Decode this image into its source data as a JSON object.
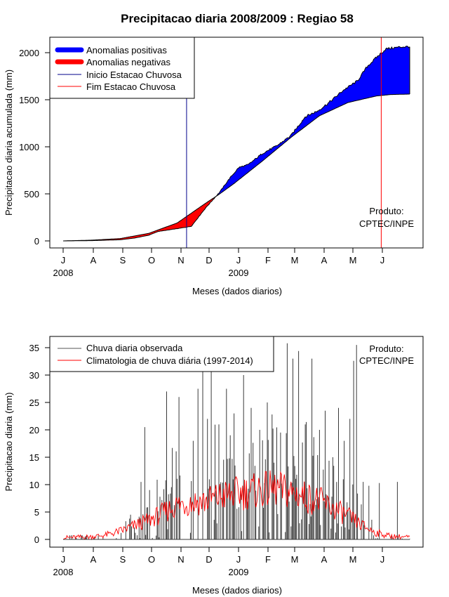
{
  "chart_data": [
    {
      "type": "area",
      "title": "Precipitacao diaria 2008/2009 : Regiao 58",
      "xlabel": "Meses (dados diarios)",
      "ylabel": "Precipitacao diaria acumulada (mm)",
      "ylim": [
        0,
        2100
      ],
      "yticks": [
        0,
        500,
        1000,
        1500,
        2000
      ],
      "month_ticks": [
        "J",
        "A",
        "S",
        "O",
        "N",
        "D",
        "J",
        "F",
        "M",
        "A",
        "M",
        "J"
      ],
      "year_labels": [
        {
          "label": "2008",
          "month_index": 0
        },
        {
          "label": "2009",
          "month_index": 6
        }
      ],
      "legend": {
        "position": "top-left",
        "entries": [
          {
            "label": "Anomalias positivas",
            "color": "#0000ff",
            "style": "thick"
          },
          {
            "label": "Anomalias negativas",
            "color": "#ff0000",
            "style": "thick"
          },
          {
            "label": "Inicio Estacao Chuvosa",
            "color": "#00008b",
            "style": "thin"
          },
          {
            "label": "Fim Estacao Chuvosa",
            "color": "#ff0000",
            "style": "thin"
          }
        ]
      },
      "annotation": [
        "Produto:",
        "CPTEC/INPE"
      ],
      "day_axis": {
        "start_day": 0,
        "end_day": 365
      },
      "season_start_day": 130,
      "season_end_day": 335,
      "climatology_cumulative": {
        "days": [
          0,
          30,
          60,
          90,
          120,
          150,
          165,
          180,
          210,
          240,
          270,
          300,
          330,
          345,
          365
        ],
        "values": [
          0,
          8,
          25,
          80,
          190,
          400,
          500,
          610,
          850,
          1100,
          1330,
          1470,
          1540,
          1555,
          1560
        ]
      },
      "observed_cumulative": {
        "days": [
          0,
          30,
          60,
          75,
          90,
          100,
          120,
          135,
          150,
          165,
          175,
          185,
          195,
          210,
          225,
          240,
          255,
          268,
          280,
          295,
          310,
          320,
          330,
          340,
          355,
          365
        ],
        "values": [
          0,
          3,
          12,
          30,
          60,
          100,
          130,
          155,
          350,
          520,
          660,
          780,
          810,
          930,
          1010,
          1120,
          1320,
          1380,
          1470,
          1600,
          1700,
          1850,
          1950,
          2040,
          2060,
          2065
        ]
      },
      "positive_anomaly_color": "#0000ff",
      "negative_anomaly_color": "#ff0000"
    },
    {
      "type": "bar",
      "xlabel": "Meses (dados diarios)",
      "ylabel": "Precipitacao diaria (mm)",
      "ylim": [
        0,
        37
      ],
      "yticks": [
        0,
        5,
        10,
        15,
        20,
        25,
        30,
        35
      ],
      "month_ticks": [
        "J",
        "A",
        "S",
        "O",
        "N",
        "D",
        "J",
        "F",
        "M",
        "A",
        "M",
        "J"
      ],
      "year_labels": [
        {
          "label": "2008",
          "month_index": 0
        },
        {
          "label": "2009",
          "month_index": 6
        }
      ],
      "legend": {
        "position": "top-left",
        "entries": [
          {
            "label": "Chuva diaria observada",
            "color": "#555555",
            "style": "thin"
          },
          {
            "label": "Climatologia de chuva diária (1997-2014)",
            "color": "#ff0000",
            "style": "thin"
          }
        ]
      },
      "annotation": [
        "Produto:",
        "CPTEC/INPE"
      ],
      "day_axis": {
        "start_day": 0,
        "end_day": 365
      },
      "observed_peaks": [
        {
          "day": 86,
          "value": 20.5
        },
        {
          "day": 82,
          "value": 10.5
        },
        {
          "day": 104,
          "value": 7.2
        },
        {
          "day": 109,
          "value": 27
        },
        {
          "day": 122,
          "value": 26
        },
        {
          "day": 137,
          "value": 18
        },
        {
          "day": 142,
          "value": 27.5
        },
        {
          "day": 147,
          "value": 33
        },
        {
          "day": 152,
          "value": 22
        },
        {
          "day": 156,
          "value": 31
        },
        {
          "day": 164,
          "value": 21
        },
        {
          "day": 172,
          "value": 27.5
        },
        {
          "day": 180,
          "value": 23
        },
        {
          "day": 190,
          "value": 30
        },
        {
          "day": 198,
          "value": 24
        },
        {
          "day": 207,
          "value": 20
        },
        {
          "day": 215,
          "value": 25
        },
        {
          "day": 222,
          "value": 14
        },
        {
          "day": 229,
          "value": 19.5
        },
        {
          "day": 236,
          "value": 35.8
        },
        {
          "day": 242,
          "value": 33
        },
        {
          "day": 248,
          "value": 34.4
        },
        {
          "day": 255,
          "value": 21
        },
        {
          "day": 262,
          "value": 33
        },
        {
          "day": 270,
          "value": 20
        },
        {
          "day": 276,
          "value": 23.5
        },
        {
          "day": 284,
          "value": 15
        },
        {
          "day": 290,
          "value": 24
        },
        {
          "day": 296,
          "value": 18
        },
        {
          "day": 302,
          "value": 22
        },
        {
          "day": 306,
          "value": 32.6
        },
        {
          "day": 309,
          "value": 35.5
        },
        {
          "day": 316,
          "value": 10.5
        },
        {
          "day": 322,
          "value": 9.8
        },
        {
          "day": 333,
          "value": 10.3
        },
        {
          "day": 352,
          "value": 10.5
        }
      ],
      "climatology_daily": {
        "days": [
          0,
          30,
          45,
          60,
          75,
          90,
          105,
          120,
          135,
          150,
          165,
          180,
          195,
          210,
          225,
          240,
          255,
          270,
          285,
          300,
          315,
          330,
          345,
          365
        ],
        "values": [
          0.3,
          0.5,
          0.8,
          1.5,
          2.5,
          3.5,
          4.8,
          6.3,
          6.8,
          7.0,
          7.8,
          8.3,
          8.7,
          9.0,
          9.2,
          8.6,
          7.8,
          7.0,
          5.6,
          4.2,
          2.5,
          1.2,
          0.6,
          0.4
        ]
      }
    }
  ]
}
